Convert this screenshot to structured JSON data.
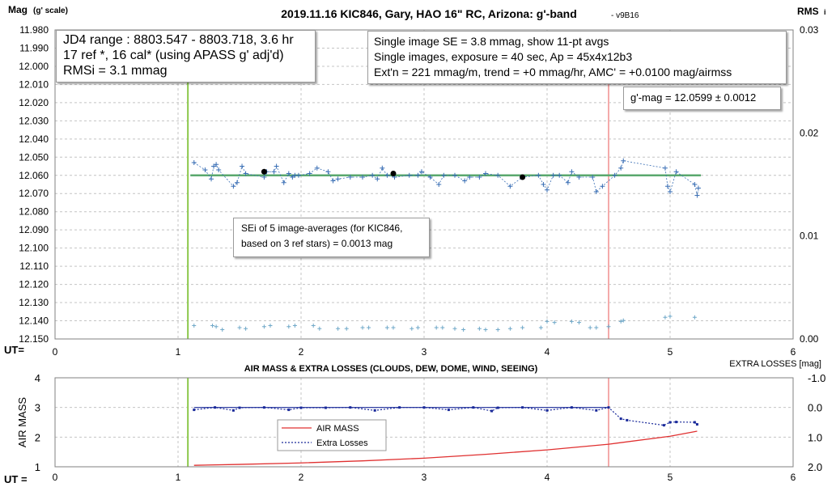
{
  "chart_data": [
    {
      "type": "scatter",
      "title": "2019.11.16 KIC846, Gary, HAO 16\" RC, Arizona: g'-band",
      "version": "- v9B16",
      "ylabel_left_main": "Mag",
      "ylabel_left_sub": "(g' scale)",
      "ylabel_right_main": "RMS",
      "ylabel_right_sub": "i",
      "xlabel_prefix": "UT=",
      "xlim": [
        0,
        6
      ],
      "ylim": [
        12.15,
        11.98
      ],
      "y2lim": [
        0.0,
        0.03
      ],
      "x_ticks": [
        "0",
        "1",
        "2",
        "3",
        "4",
        "5",
        "6"
      ],
      "y_ticks": [
        "11.980",
        "11.990",
        "12.000",
        "12.010",
        "12.020",
        "12.030",
        "12.040",
        "12.050",
        "12.060",
        "12.070",
        "12.080",
        "12.090",
        "12.100",
        "12.110",
        "12.120",
        "12.130",
        "12.140",
        "12.150"
      ],
      "y2_ticks": [
        "0.03",
        "0.02",
        "0.01",
        "0.00"
      ],
      "grid": true,
      "series": [
        {
          "kind": "individual",
          "color": "#3a6fb5",
          "x": [
            1.13,
            1.22,
            1.27,
            1.29,
            1.31,
            1.33,
            1.45,
            1.48,
            1.52,
            1.55,
            1.7,
            1.72,
            1.78,
            1.8,
            1.86,
            1.9,
            1.93,
            1.95,
            1.98,
            2.07,
            2.13,
            2.22,
            2.26,
            2.3,
            2.4,
            2.5,
            2.58,
            2.62,
            2.66,
            2.7,
            2.76,
            2.88,
            2.95,
            2.98,
            3.05,
            3.12,
            3.16,
            3.25,
            3.33,
            3.37,
            3.45,
            3.5,
            3.6,
            3.7,
            3.8,
            3.93,
            3.97,
            4.0,
            4.05,
            4.1,
            4.17,
            4.2,
            4.26,
            4.37,
            4.4,
            4.45,
            4.55,
            4.6,
            4.62,
            4.96,
            4.98,
            5.0,
            5.05,
            5.2,
            5.22,
            5.23
          ],
          "y": [
            12.053,
            12.057,
            12.062,
            12.055,
            12.054,
            12.057,
            12.066,
            12.064,
            12.055,
            12.059,
            12.061,
            12.058,
            12.058,
            12.055,
            12.064,
            12.059,
            12.061,
            12.06,
            12.06,
            12.059,
            12.056,
            12.058,
            12.063,
            12.062,
            12.061,
            12.061,
            12.06,
            12.062,
            12.056,
            12.06,
            12.061,
            12.06,
            12.06,
            12.058,
            12.061,
            12.065,
            12.06,
            12.06,
            12.063,
            12.061,
            12.061,
            12.059,
            12.06,
            12.066,
            12.061,
            12.06,
            12.065,
            12.068,
            12.06,
            12.06,
            12.064,
            12.058,
            12.061,
            12.061,
            12.069,
            12.066,
            12.06,
            12.056,
            12.052,
            12.056,
            12.066,
            12.069,
            12.058,
            12.065,
            12.071,
            12.067
          ]
        },
        {
          "kind": "11-pt averages",
          "color": "#000000",
          "x": [
            1.7,
            2.75,
            3.8
          ],
          "y": [
            12.058,
            12.059,
            12.061
          ]
        },
        {
          "kind": "RMSi (right axis)",
          "color": "#6fa8c8",
          "x": [
            1.13,
            1.28,
            1.31,
            1.36,
            1.5,
            1.55,
            1.7,
            1.75,
            1.9,
            1.95,
            2.1,
            2.15,
            2.3,
            2.37,
            2.5,
            2.55,
            2.7,
            2.75,
            2.9,
            2.95,
            3.1,
            3.15,
            3.25,
            3.32,
            3.45,
            3.5,
            3.6,
            3.7,
            3.8,
            3.95,
            4.0,
            4.06,
            4.2,
            4.26,
            4.35,
            4.4,
            4.5,
            4.6,
            4.62,
            4.96,
            5.0,
            5.2
          ],
          "y": [
            0.0013,
            0.0013,
            0.0012,
            0.0009,
            0.0011,
            0.001,
            0.0012,
            0.0013,
            0.0012,
            0.0013,
            0.0013,
            0.001,
            0.001,
            0.001,
            0.0011,
            0.0011,
            0.0011,
            0.0011,
            0.001,
            0.0011,
            0.0011,
            0.0011,
            0.001,
            0.0009,
            0.001,
            0.0009,
            0.0009,
            0.001,
            0.0011,
            0.0011,
            0.0017,
            0.0016,
            0.0017,
            0.0016,
            0.0011,
            0.0011,
            0.0012,
            0.0017,
            0.0018,
            0.0021,
            0.0022,
            0.0021
          ]
        }
      ],
      "fit_line": {
        "color": "#5aa86e",
        "x": [
          1.1,
          5.25
        ],
        "y": [
          12.06,
          12.06
        ]
      },
      "markers": [
        {
          "x": 1.08,
          "color": "#8cc84b"
        },
        {
          "x": 4.5,
          "color": "#f4aaaa"
        }
      ],
      "annotations": {
        "info_left": [
          "JD4 range : 8803.547 - 8803.718,  3.6  hr",
          "17 ref *, 16 cal* (using APASS g' adj'd)",
          "RMSi = 3.1 mmag"
        ],
        "info_right": [
          "Single image SE = 3.8 mmag, show  11-pt avgs",
          "Single images, exposure = 40 sec, Ap = 45x4x12b3",
          "Ext'n = 221 mmag/m, trend =  +0 mmag/hr, AMC' = +0.0100 mag/airmss"
        ],
        "gmag": "g'-mag = 12.0599 ± 0.0012",
        "sei": [
          "SEi of 5 image-averages (for KIC846,",
          "based on 3 ref stars) = 0.0013 mag"
        ]
      }
    },
    {
      "type": "line",
      "title": "AIR MASS & EXTRA LOSSES (CLOUDS, DEW, DOME, WIND, SEEING)",
      "ylabel": "AIR MASS",
      "y2label": "EXTRA LOSSES [mag]",
      "xlabel_prefix": "UT =",
      "xlim": [
        0,
        6
      ],
      "ylim": [
        1,
        4
      ],
      "y2lim": [
        2.0,
        -1.0
      ],
      "x_ticks": [
        "0",
        "1",
        "2",
        "3",
        "4",
        "5",
        "6"
      ],
      "y_ticks": [
        "4",
        "3",
        "2",
        "1"
      ],
      "y2_ticks": [
        "-1.0",
        "0.0",
        "1.0",
        "2.0"
      ],
      "grid": true,
      "series": [
        {
          "name": "AIR MASS",
          "color": "#e03030",
          "x": [
            1.13,
            1.5,
            2.0,
            2.5,
            3.0,
            3.5,
            4.0,
            4.5,
            5.0,
            5.22
          ],
          "y": [
            1.05,
            1.08,
            1.13,
            1.2,
            1.29,
            1.42,
            1.57,
            1.76,
            2.03,
            2.2
          ]
        },
        {
          "name": "Extra Losses",
          "color": "#1a2a9a",
          "x": [
            1.13,
            1.3,
            1.45,
            1.5,
            1.7,
            1.9,
            2.0,
            2.2,
            2.4,
            2.6,
            2.8,
            3.0,
            3.2,
            3.4,
            3.55,
            3.6,
            3.8,
            4.0,
            4.2,
            4.4,
            4.5,
            4.6,
            4.65,
            4.95,
            5.0,
            5.05,
            5.2,
            5.22
          ],
          "y": [
            0.08,
            0.0,
            0.1,
            0.01,
            0.0,
            0.08,
            0.01,
            0.01,
            0.0,
            0.1,
            0.0,
            0.0,
            0.08,
            0.0,
            0.12,
            0.01,
            0.0,
            0.1,
            0.0,
            0.1,
            0.0,
            0.38,
            0.43,
            0.6,
            0.5,
            0.49,
            0.5,
            0.57
          ]
        }
      ],
      "extra_losses_ref_line": {
        "color": "#1a2a9a",
        "x": [
          1.13,
          4.5
        ],
        "y": [
          0.0,
          0.0
        ]
      },
      "markers": [
        {
          "x": 1.08,
          "color": "#8cc84b"
        },
        {
          "x": 4.5,
          "color": "#f4aaaa"
        }
      ],
      "legend": "center-left"
    }
  ]
}
